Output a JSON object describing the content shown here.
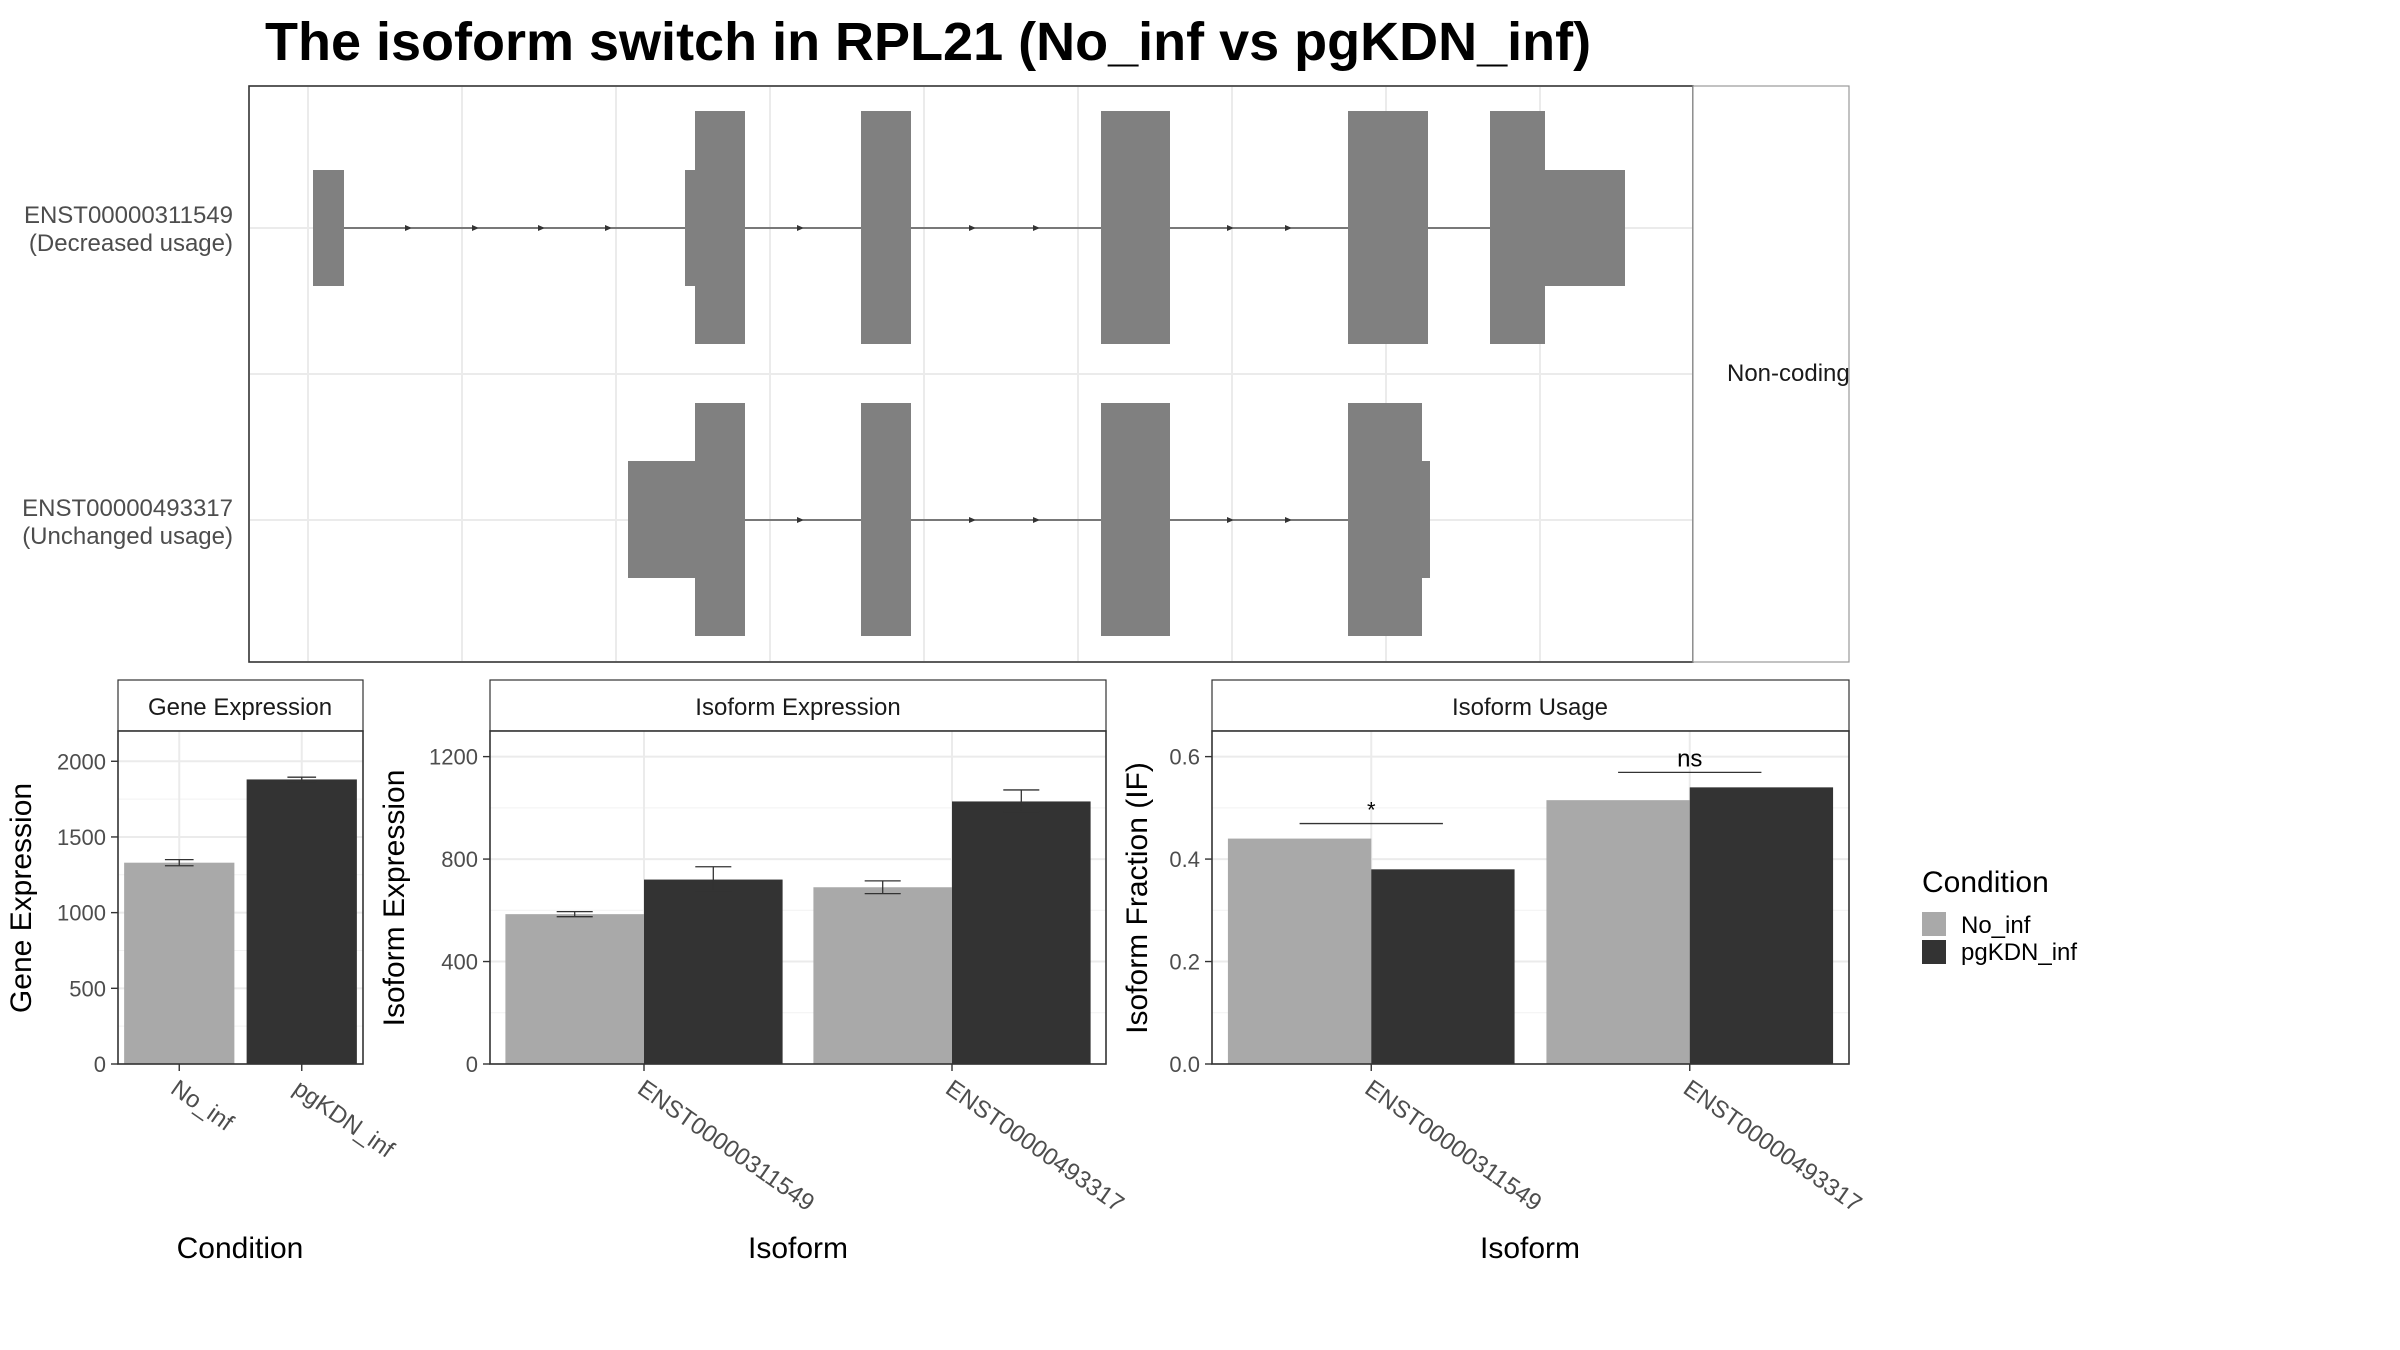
{
  "title": "The isoform switch in RPL21 (No_inf vs pgKDN_inf)",
  "colors": {
    "no_inf": "#a9a9a9",
    "pgkdn_inf": "#333333",
    "exon": "#808080",
    "grid": "#ebebeb",
    "panel_border": "#333333",
    "strip_border": "#999999"
  },
  "structure": {
    "strip_label": "Non-coding",
    "transcripts": [
      {
        "label_line1": "ENST00000311549",
        "label_line2": "(Decreased usage)"
      },
      {
        "label_line1": "ENST00000493317",
        "label_line2": "(Unchanged usage)"
      }
    ]
  },
  "chart_data": [
    {
      "type": "bar",
      "panel": "Gene Expression",
      "categories": [
        "No_inf",
        "pgKDN_inf"
      ],
      "values": [
        1330,
        1880
      ],
      "error": [
        [
          1310,
          1350
        ],
        [
          1865,
          1895
        ]
      ],
      "xlabel": "Condition",
      "ylabel": "Gene Expression",
      "ylim": [
        0,
        2200
      ],
      "yticks": [
        0,
        500,
        1000,
        1500,
        2000
      ]
    },
    {
      "type": "bar",
      "panel": "Isoform Expression",
      "categories": [
        "ENST00000311549",
        "ENST00000493317"
      ],
      "series": [
        {
          "name": "No_inf",
          "values": [
            585,
            690
          ],
          "error": [
            [
              575,
              595
            ],
            [
              665,
              715
            ]
          ]
        },
        {
          "name": "pgKDN_inf",
          "values": [
            720,
            1025
          ],
          "error": [
            [
              675,
              770
            ],
            [
              985,
              1070
            ]
          ]
        }
      ],
      "xlabel": "Isoform",
      "ylabel": "Isoform Expression",
      "ylim": [
        0,
        1300
      ],
      "yticks": [
        0,
        400,
        800,
        1200
      ]
    },
    {
      "type": "bar",
      "panel": "Isoform Usage",
      "categories": [
        "ENST00000311549",
        "ENST00000493317"
      ],
      "series": [
        {
          "name": "No_inf",
          "values": [
            0.44,
            0.515
          ]
        },
        {
          "name": "pgKDN_inf",
          "values": [
            0.38,
            0.54
          ]
        }
      ],
      "significance": [
        "*",
        "ns"
      ],
      "xlabel": "Isoform",
      "ylabel": "Isoform Fraction (IF)",
      "ylim": [
        0,
        0.65
      ],
      "yticks": [
        "0.0",
        "0.2",
        "0.4",
        "0.6"
      ]
    }
  ],
  "legend": {
    "title": "Condition",
    "items": [
      {
        "label": "No_inf",
        "color": "#a9a9a9"
      },
      {
        "label": "pgKDN_inf",
        "color": "#333333"
      }
    ]
  }
}
